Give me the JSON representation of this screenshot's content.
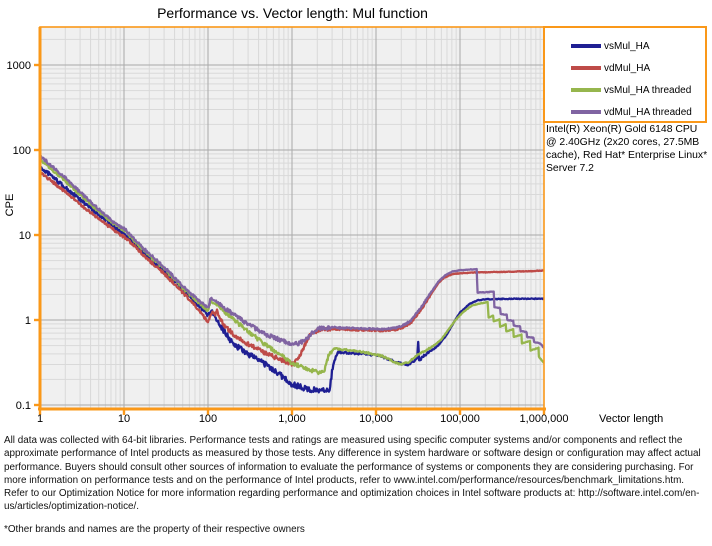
{
  "title": "Performance vs. Vector length: Mul function",
  "colors": {
    "axis_orange": "#FA9819",
    "plot_background": "#F0F0F0",
    "grid_minor": "#D9D9D9",
    "grid_major": "#A9A9A9",
    "series_blue": "#1F1F93",
    "series_red": "#BE4B48",
    "series_green": "#96B64D",
    "series_purple": "#8064A2"
  },
  "legend": {
    "items": [
      {
        "label": "vsMul_HA",
        "color": "#1F1F93"
      },
      {
        "label": "vdMul_HA",
        "color": "#BE4B48"
      },
      {
        "label": "vsMul_HA threaded",
        "color": "#96B64D"
      },
      {
        "label": "vdMul_HA threaded",
        "color": "#8064A2"
      }
    ]
  },
  "system_info": "Intel(R) Xeon(R) Gold 6148 CPU @ 2.40GHz (2x20 cores, 27.5MB cache), Red Hat* Enterprise Linux* Server 7.2",
  "footer": {
    "disclaimer": "All data was collected with 64-bit libraries. Performance tests and ratings are measured using specific computer systems and/or components and reflect the approximate performance of Intel products as measured by those tests. Any difference in system hardware or software design or configuration may affect actual performance. Buyers should consult other sources of information to evaluate the performance of systems or components they are considering purchasing. For more information on performance tests and on the performance of Intel products, refer to www.intel.com/performance/resources/benchmark_limitations.htm.  Refer to our Optimization Notice for more information regarding performance and optimization choices in Intel software products at: http://software.intel.com/en-us/articles/optimization-notice/.",
    "footnote": "*Other brands and names are the property of their respective owners"
  },
  "chart_data": {
    "type": "line",
    "title": "Performance vs. Vector length: Mul function",
    "xlabel": "Vector length",
    "ylabel": "CPE",
    "x_scale": "log",
    "y_scale": "log",
    "xlim": [
      1,
      1000000
    ],
    "ylim": [
      0.09,
      2800
    ],
    "grid": true,
    "legend_position": "top-right-outside",
    "x_ticks": [
      {
        "value": 1,
        "label": "1"
      },
      {
        "value": 10,
        "label": "10"
      },
      {
        "value": 100,
        "label": "100"
      },
      {
        "value": 1000,
        "label": "1,000"
      },
      {
        "value": 10000,
        "label": "10,000"
      },
      {
        "value": 100000,
        "label": "100,000"
      },
      {
        "value": 1000000,
        "label": "1,000,000"
      }
    ],
    "y_ticks": [
      {
        "value": 1000,
        "label": "1000"
      },
      {
        "value": 100,
        "label": "100"
      },
      {
        "value": 10,
        "label": "10"
      },
      {
        "value": 1,
        "label": "1"
      },
      {
        "value": 0.1,
        "label": "0.1"
      }
    ],
    "series": [
      {
        "name": "vsMul_HA",
        "color": "#1F1F93",
        "points": [
          [
            1,
            62
          ],
          [
            1.3,
            52
          ],
          [
            2,
            36
          ],
          [
            3,
            26
          ],
          [
            5,
            17.5
          ],
          [
            8,
            12
          ],
          [
            10,
            10.5
          ],
          [
            15,
            7
          ],
          [
            20,
            5.4
          ],
          [
            30,
            3.8
          ],
          [
            50,
            2.3
          ],
          [
            70,
            1.65
          ],
          [
            100,
            1.15
          ],
          [
            112,
            1.25
          ],
          [
            130,
            0.95
          ],
          [
            200,
            0.52
          ],
          [
            300,
            0.4
          ],
          [
            500,
            0.295
          ],
          [
            800,
            0.21
          ],
          [
            1000,
            0.175
          ],
          [
            1500,
            0.155
          ],
          [
            2200,
            0.148
          ],
          [
            2800,
            0.155
          ],
          [
            3100,
            0.3
          ],
          [
            3500,
            0.42
          ],
          [
            5000,
            0.41
          ],
          [
            8000,
            0.4
          ],
          [
            12000,
            0.37
          ],
          [
            16000,
            0.33
          ],
          [
            20000,
            0.305
          ],
          [
            24000,
            0.3
          ],
          [
            28000,
            0.33
          ],
          [
            31000,
            0.36
          ],
          [
            31800,
            0.55
          ],
          [
            32600,
            0.33
          ],
          [
            36000,
            0.37
          ],
          [
            45000,
            0.43
          ],
          [
            55000,
            0.5
          ],
          [
            70000,
            0.68
          ],
          [
            85000,
            0.95
          ],
          [
            100000,
            1.22
          ],
          [
            130000,
            1.55
          ],
          [
            160000,
            1.7
          ],
          [
            200000,
            1.76
          ],
          [
            500000,
            1.78
          ],
          [
            1000000,
            1.78
          ]
        ]
      },
      {
        "name": "vdMul_HA",
        "color": "#BE4B48",
        "points": [
          [
            1,
            54
          ],
          [
            1.3,
            45
          ],
          [
            2,
            32
          ],
          [
            3,
            23
          ],
          [
            5,
            15.5
          ],
          [
            8,
            11
          ],
          [
            10,
            9.5
          ],
          [
            15,
            6.6
          ],
          [
            20,
            5.0
          ],
          [
            30,
            3.5
          ],
          [
            50,
            2.1
          ],
          [
            70,
            1.5
          ],
          [
            100,
            0.95
          ],
          [
            113,
            1.28
          ],
          [
            122,
            1.15
          ],
          [
            128,
            1.3
          ],
          [
            140,
            1.02
          ],
          [
            160,
            0.85
          ],
          [
            200,
            0.68
          ],
          [
            300,
            0.52
          ],
          [
            500,
            0.4
          ],
          [
            800,
            0.33
          ],
          [
            1050,
            0.3
          ],
          [
            1300,
            0.42
          ],
          [
            1600,
            0.65
          ],
          [
            2000,
            0.75
          ],
          [
            3000,
            0.78
          ],
          [
            5000,
            0.77
          ],
          [
            8000,
            0.76
          ],
          [
            12000,
            0.75
          ],
          [
            16000,
            0.76
          ],
          [
            20000,
            0.8
          ],
          [
            26000,
            0.92
          ],
          [
            35000,
            1.35
          ],
          [
            45000,
            2.0
          ],
          [
            55000,
            2.7
          ],
          [
            65000,
            3.15
          ],
          [
            80000,
            3.45
          ],
          [
            100000,
            3.55
          ],
          [
            150000,
            3.62
          ],
          [
            250000,
            3.66
          ],
          [
            400000,
            3.7
          ],
          [
            700000,
            3.76
          ],
          [
            1000000,
            3.82
          ]
        ]
      },
      {
        "name": "vsMul_HA threaded",
        "color": "#96B64D",
        "points": [
          [
            1,
            78
          ],
          [
            1.3,
            62
          ],
          [
            2,
            43
          ],
          [
            3,
            30
          ],
          [
            5,
            19
          ],
          [
            8,
            13
          ],
          [
            10,
            11.5
          ],
          [
            15,
            7.6
          ],
          [
            20,
            5.8
          ],
          [
            30,
            4.0
          ],
          [
            50,
            2.4
          ],
          [
            70,
            1.75
          ],
          [
            100,
            1.28
          ],
          [
            108,
            1.68
          ],
          [
            125,
            1.55
          ],
          [
            150,
            1.3
          ],
          [
            200,
            1.02
          ],
          [
            300,
            0.73
          ],
          [
            500,
            0.5
          ],
          [
            800,
            0.37
          ],
          [
            1000,
            0.31
          ],
          [
            1500,
            0.265
          ],
          [
            2100,
            0.24
          ],
          [
            2450,
            0.26
          ],
          [
            2750,
            0.4
          ],
          [
            3200,
            0.46
          ],
          [
            5000,
            0.44
          ],
          [
            8000,
            0.41
          ],
          [
            12000,
            0.375
          ],
          [
            16000,
            0.325
          ],
          [
            20000,
            0.3
          ],
          [
            24000,
            0.315
          ],
          [
            28000,
            0.36
          ],
          [
            33000,
            0.4
          ],
          [
            40000,
            0.44
          ],
          [
            50000,
            0.51
          ],
          [
            60000,
            0.59
          ],
          [
            75000,
            0.8
          ],
          [
            90000,
            1.02
          ],
          [
            110000,
            1.25
          ],
          [
            140000,
            1.48
          ],
          [
            180000,
            1.58
          ],
          [
            213000,
            1.62
          ],
          [
            219000,
            1.06
          ],
          [
            248000,
            1.13
          ],
          [
            252000,
            0.96
          ],
          [
            295000,
            1.02
          ],
          [
            300000,
            0.83
          ],
          [
            350000,
            0.89
          ],
          [
            356000,
            0.73
          ],
          [
            430000,
            0.78
          ],
          [
            436000,
            0.63
          ],
          [
            540000,
            0.67
          ],
          [
            546000,
            0.53
          ],
          [
            680000,
            0.57
          ],
          [
            690000,
            0.44
          ],
          [
            860000,
            0.47
          ],
          [
            870000,
            0.37
          ],
          [
            1000000,
            0.31
          ]
        ]
      },
      {
        "name": "vdMul_HA threaded",
        "color": "#8064A2",
        "points": [
          [
            1,
            86
          ],
          [
            1.3,
            68
          ],
          [
            2,
            47
          ],
          [
            3,
            32
          ],
          [
            5,
            20
          ],
          [
            8,
            13.5
          ],
          [
            10,
            12
          ],
          [
            15,
            7.9
          ],
          [
            20,
            6.0
          ],
          [
            30,
            4.2
          ],
          [
            50,
            2.5
          ],
          [
            70,
            1.85
          ],
          [
            100,
            1.38
          ],
          [
            108,
            1.8
          ],
          [
            125,
            1.68
          ],
          [
            150,
            1.42
          ],
          [
            200,
            1.18
          ],
          [
            300,
            0.89
          ],
          [
            500,
            0.67
          ],
          [
            800,
            0.56
          ],
          [
            1100,
            0.52
          ],
          [
            1400,
            0.56
          ],
          [
            1700,
            0.7
          ],
          [
            2100,
            0.8
          ],
          [
            3000,
            0.82
          ],
          [
            5000,
            0.8
          ],
          [
            8000,
            0.79
          ],
          [
            12000,
            0.78
          ],
          [
            16000,
            0.8
          ],
          [
            20000,
            0.84
          ],
          [
            26000,
            0.98
          ],
          [
            35000,
            1.45
          ],
          [
            45000,
            2.1
          ],
          [
            55000,
            2.8
          ],
          [
            65000,
            3.3
          ],
          [
            80000,
            3.7
          ],
          [
            100000,
            3.85
          ],
          [
            130000,
            3.92
          ],
          [
            158000,
            3.95
          ],
          [
            162000,
            2.1
          ],
          [
            200000,
            2.12
          ],
          [
            252000,
            2.15
          ],
          [
            257000,
            1.42
          ],
          [
            300000,
            1.38
          ],
          [
            305000,
            1.18
          ],
          [
            360000,
            1.15
          ],
          [
            366000,
            1.0
          ],
          [
            430000,
            0.98
          ],
          [
            437000,
            0.86
          ],
          [
            520000,
            0.84
          ],
          [
            528000,
            0.74
          ],
          [
            620000,
            0.72
          ],
          [
            630000,
            0.63
          ],
          [
            750000,
            0.62
          ],
          [
            762000,
            0.55
          ],
          [
            900000,
            0.53
          ],
          [
            1000000,
            0.47
          ]
        ]
      }
    ]
  }
}
